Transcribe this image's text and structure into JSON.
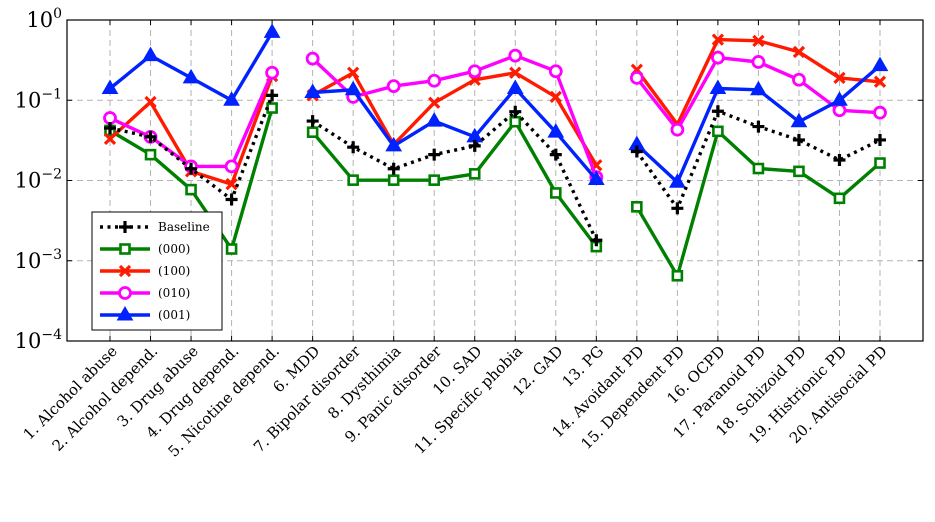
{
  "chart_data": {
    "type": "line",
    "scale": "log",
    "ylim": [
      0.0001,
      1
    ],
    "y_ticks": [
      {
        "value": 1,
        "base": "10",
        "exp": "0"
      },
      {
        "value": 0.1,
        "base": "10",
        "exp": "−1"
      },
      {
        "value": 0.01,
        "base": "10",
        "exp": "−2"
      },
      {
        "value": 0.001,
        "base": "10",
        "exp": "−3"
      },
      {
        "value": 0.0001,
        "base": "10",
        "exp": "−4"
      }
    ],
    "grid": true,
    "legend_position": "bottom-left",
    "categories": [
      "1. Alcohol abuse",
      "2. Alcohol depend.",
      "3. Drug abuse",
      "4. Drug depend.",
      "5. Nicotine depend.",
      "6. MDD",
      "7. Bipolar disorder",
      "8. Dysthimia",
      "9. Panic disorder",
      "10. SAD",
      "11. Specific phobia",
      "12. GAD",
      "13. PG",
      "14. Avoidant PD",
      "15. Dependent PD",
      "16. OCPD",
      "17. Paranoid PD",
      "18. Schizoid PD",
      "19. Histrionic PD",
      "20. Antisocial PD"
    ],
    "segments": [
      [
        0,
        4
      ],
      [
        5,
        12
      ],
      [
        13,
        19
      ]
    ],
    "series": [
      {
        "name": "Baseline",
        "color": "#000000",
        "marker": "plus",
        "dashed": true,
        "values": [
          0.045,
          0.035,
          0.014,
          0.0058,
          0.115,
          0.055,
          0.026,
          0.014,
          0.021,
          0.027,
          0.072,
          0.021,
          0.0018,
          0.023,
          0.0045,
          0.073,
          0.047,
          0.032,
          0.018,
          0.032
        ]
      },
      {
        "name": "(000)",
        "color": "#008000",
        "marker": "square",
        "dashed": false,
        "values": [
          0.042,
          0.021,
          0.0077,
          0.0014,
          0.08,
          0.04,
          0.0101,
          0.0101,
          0.0101,
          0.0121,
          0.054,
          0.007,
          0.0015,
          0.0047,
          0.00065,
          0.041,
          0.0141,
          0.013,
          0.006,
          0.0165
        ]
      },
      {
        "name": "(100)",
        "color": "#ff1a00",
        "marker": "cross",
        "dashed": false,
        "values": [
          0.033,
          0.095,
          0.013,
          0.009,
          0.2,
          0.115,
          0.22,
          0.028,
          0.093,
          0.18,
          0.22,
          0.11,
          0.0155,
          0.24,
          0.05,
          0.57,
          0.55,
          0.4,
          0.19,
          0.17
        ]
      },
      {
        "name": "(010)",
        "color": "#ff00ff",
        "marker": "circle",
        "dashed": false,
        "values": [
          0.06,
          0.035,
          0.015,
          0.015,
          0.22,
          0.33,
          0.11,
          0.15,
          0.175,
          0.23,
          0.36,
          0.23,
          0.011,
          0.19,
          0.043,
          0.34,
          0.3,
          0.18,
          0.075,
          0.07
        ]
      },
      {
        "name": "(001)",
        "color": "#0022ff",
        "marker": "triangle",
        "dashed": false,
        "values": [
          0.14,
          0.36,
          0.19,
          0.1,
          0.7,
          0.125,
          0.135,
          0.027,
          0.055,
          0.035,
          0.14,
          0.04,
          0.0103,
          0.028,
          0.0095,
          0.14,
          0.135,
          0.054,
          0.1,
          0.27
        ]
      }
    ]
  }
}
